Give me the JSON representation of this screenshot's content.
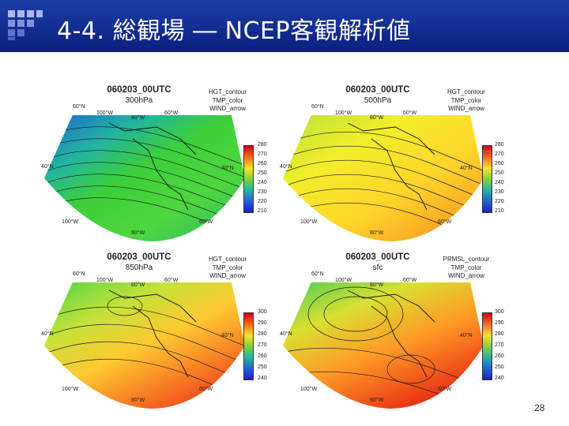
{
  "header": {
    "title": "4-4. 総観場 ― NCEP客観解析値",
    "colors": {
      "band": "#0b1f80",
      "logo_light": "#9aa8e6",
      "logo_dark": "#5565c8"
    }
  },
  "panels": [
    {
      "title": "060203_00UTC",
      "level": "300hPa",
      "legend": [
        "HGT_contour",
        "TMP_color",
        "WIND_arrow"
      ],
      "scale": [
        "280",
        "270",
        "260",
        "250",
        "240",
        "230",
        "220",
        "210"
      ],
      "lon_labels": [
        "60°N",
        "100°W",
        "80°W",
        "60°W",
        "40°N",
        "40°N",
        "100°W",
        "80°W",
        "60°W"
      ]
    },
    {
      "title": "060203_00UTC",
      "level": "500hPa",
      "legend": [
        "HGT_contour",
        "TMP_color",
        "WIND_arrow"
      ],
      "scale": [
        "280",
        "270",
        "260",
        "250",
        "240",
        "230",
        "220",
        "210"
      ],
      "lon_labels": [
        "60°N",
        "100°W",
        "80°W",
        "60°W",
        "40°N",
        "40°N",
        "100°W",
        "80°W",
        "60°W"
      ]
    },
    {
      "title": "060203_00UTC",
      "level": "850hPa",
      "legend": [
        "HGT_contour",
        "TMP_color",
        "WIND_arrow"
      ],
      "scale": [
        "300",
        "290",
        "280",
        "270",
        "260",
        "250",
        "240"
      ],
      "lon_labels": [
        "60°N",
        "100°W",
        "80°W",
        "60°W",
        "40°N",
        "40°N",
        "100°W",
        "80°W",
        "60°W"
      ]
    },
    {
      "title": "060203_00UTC",
      "level": "sfc",
      "legend": [
        "PRMSL_contour",
        "TMP_color",
        "WIND_arrow"
      ],
      "scale": [
        "300",
        "290",
        "280",
        "270",
        "260",
        "250",
        "240"
      ],
      "lon_labels": [
        "60°N",
        "100°W",
        "80°W",
        "60°W",
        "40°N",
        "40°N",
        "100°W",
        "80°W",
        "60°W"
      ]
    }
  ],
  "page_number": "28"
}
